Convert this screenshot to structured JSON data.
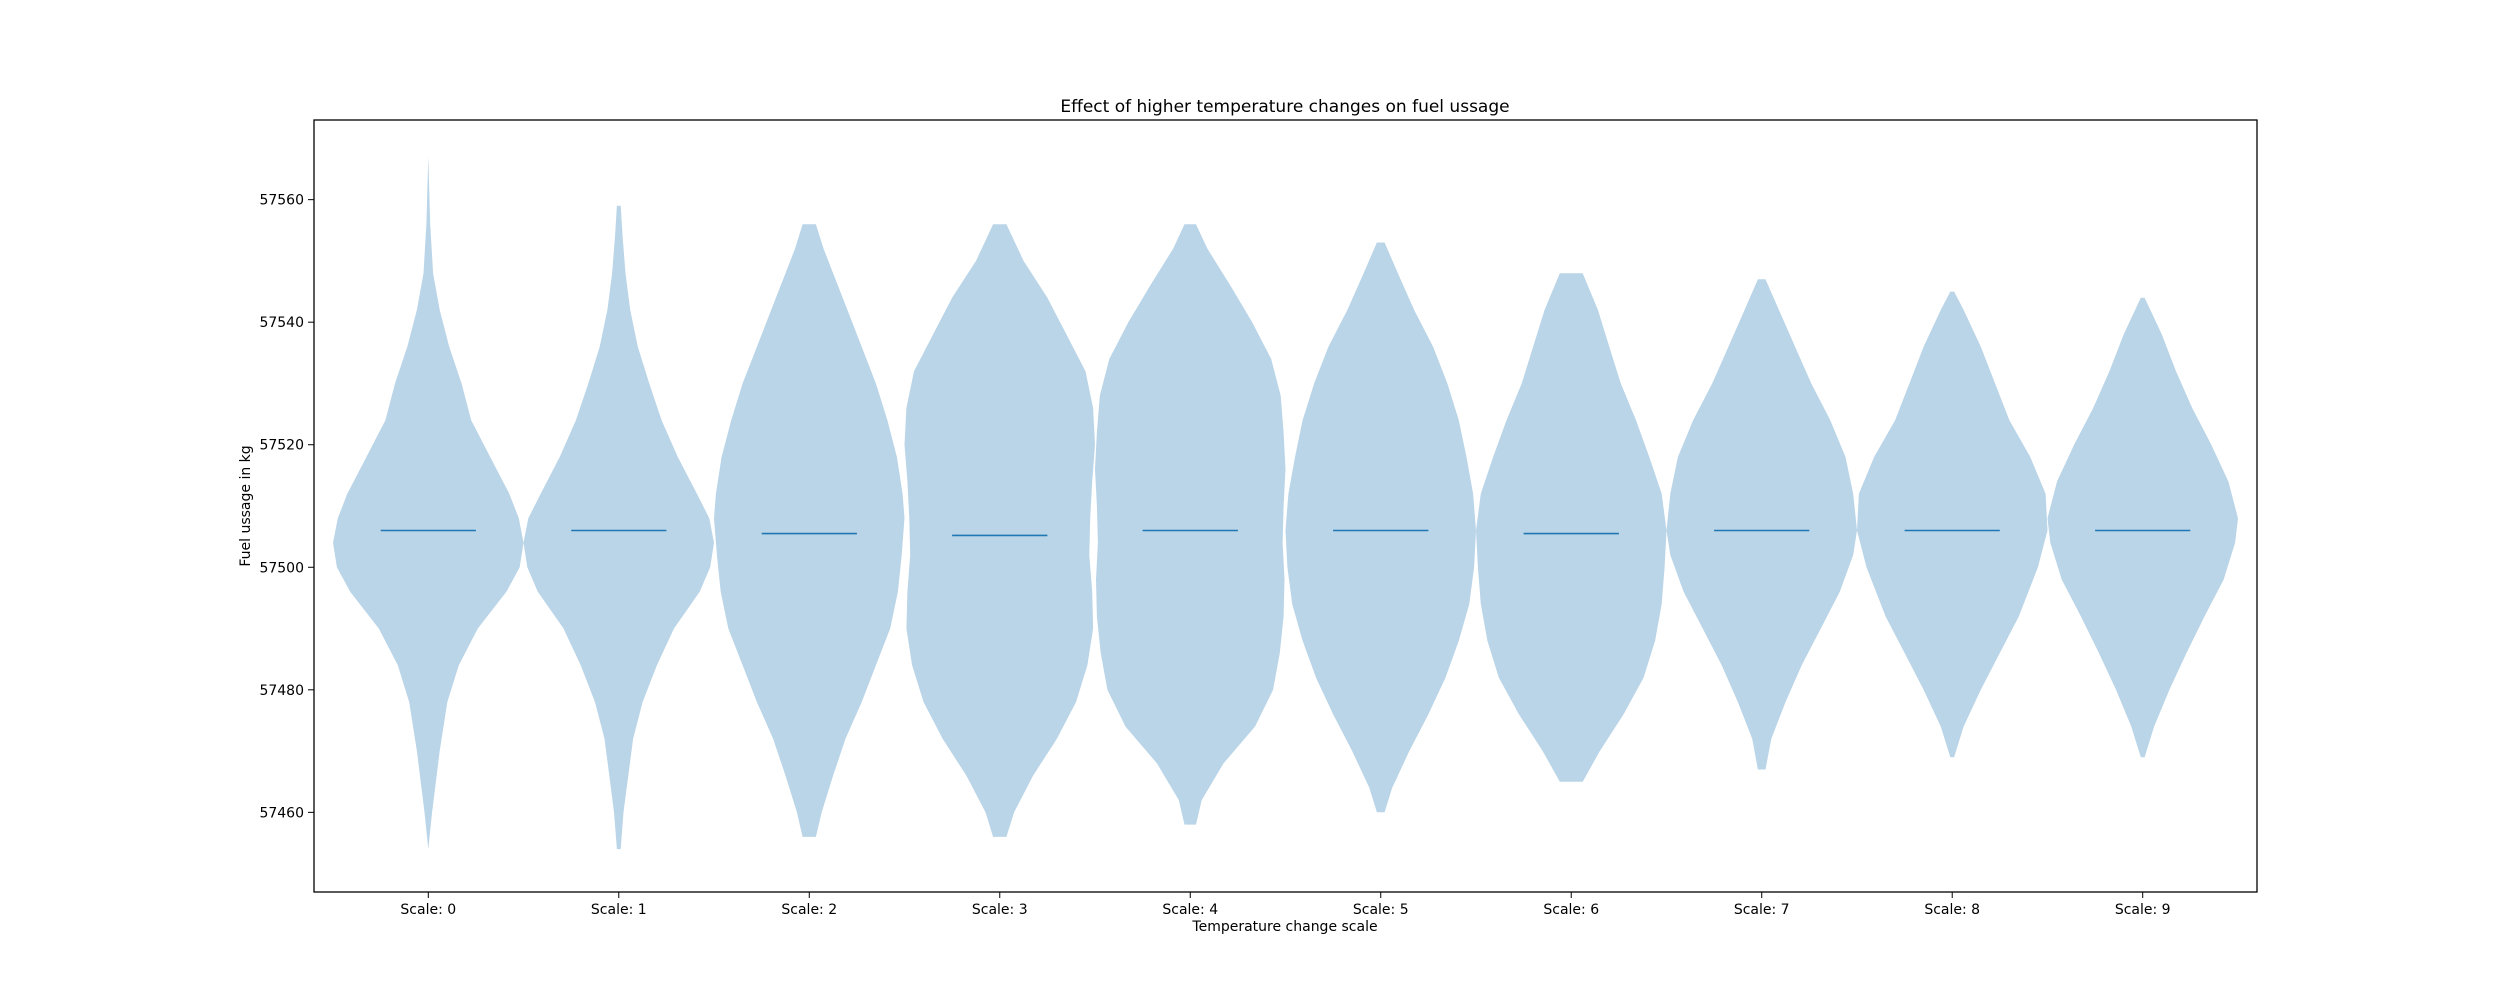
{
  "chart_data": {
    "type": "violin",
    "title": "Effect of higher temperature changes on fuel ussage",
    "xlabel": "Temperature change scale",
    "ylabel": "Fuel ussage in kg",
    "ylim": [
      57447,
      57573
    ],
    "yticks": [
      57460,
      57480,
      57500,
      57520,
      57540,
      57560
    ],
    "grid": false,
    "colors": {
      "fill": "#bad5e8",
      "median": "#1f77b4",
      "frame": "#000000"
    },
    "series": [
      {
        "category": "Scale: 0",
        "min": 57454,
        "max": 57567,
        "median": 57506.0,
        "half_width": 0.5,
        "profile": [
          [
            57454,
            0.0
          ],
          [
            57460,
            0.04
          ],
          [
            57470,
            0.12
          ],
          [
            57478,
            0.2
          ],
          [
            57484,
            0.32
          ],
          [
            57490,
            0.52
          ],
          [
            57496,
            0.82
          ],
          [
            57500,
            0.96
          ],
          [
            57504,
            1.0
          ],
          [
            57508,
            0.95
          ],
          [
            57512,
            0.85
          ],
          [
            57518,
            0.65
          ],
          [
            57524,
            0.45
          ],
          [
            57530,
            0.35
          ],
          [
            57536,
            0.22
          ],
          [
            57542,
            0.12
          ],
          [
            57548,
            0.05
          ],
          [
            57556,
            0.02
          ],
          [
            57567,
            0.0
          ]
        ]
      },
      {
        "category": "Scale: 1",
        "min": 57454,
        "max": 57559,
        "median": 57506.0,
        "half_width": 0.5,
        "profile": [
          [
            57454,
            0.02
          ],
          [
            57460,
            0.05
          ],
          [
            57466,
            0.1
          ],
          [
            57472,
            0.15
          ],
          [
            57478,
            0.25
          ],
          [
            57484,
            0.4
          ],
          [
            57490,
            0.58
          ],
          [
            57496,
            0.85
          ],
          [
            57500,
            0.96
          ],
          [
            57504,
            1.0
          ],
          [
            57508,
            0.95
          ],
          [
            57512,
            0.82
          ],
          [
            57518,
            0.62
          ],
          [
            57524,
            0.45
          ],
          [
            57530,
            0.32
          ],
          [
            57536,
            0.2
          ],
          [
            57542,
            0.12
          ],
          [
            57548,
            0.07
          ],
          [
            57554,
            0.04
          ],
          [
            57559,
            0.02
          ]
        ]
      },
      {
        "category": "Scale: 2",
        "min": 57456,
        "max": 57556,
        "median": 57505.5,
        "half_width": 0.5,
        "profile": [
          [
            57456,
            0.07
          ],
          [
            57460,
            0.13
          ],
          [
            57466,
            0.25
          ],
          [
            57472,
            0.38
          ],
          [
            57478,
            0.55
          ],
          [
            57484,
            0.7
          ],
          [
            57490,
            0.85
          ],
          [
            57496,
            0.93
          ],
          [
            57502,
            0.97
          ],
          [
            57508,
            1.0
          ],
          [
            57512,
            0.98
          ],
          [
            57518,
            0.92
          ],
          [
            57524,
            0.82
          ],
          [
            57530,
            0.7
          ],
          [
            57536,
            0.55
          ],
          [
            57542,
            0.4
          ],
          [
            57548,
            0.25
          ],
          [
            57552,
            0.15
          ],
          [
            57556,
            0.07
          ]
        ]
      },
      {
        "category": "Scale: 3",
        "min": 57456,
        "max": 57556,
        "median": 57505.2,
        "half_width": 0.5,
        "profile": [
          [
            57456,
            0.07
          ],
          [
            57460,
            0.15
          ],
          [
            57466,
            0.35
          ],
          [
            57472,
            0.6
          ],
          [
            57478,
            0.8
          ],
          [
            57484,
            0.92
          ],
          [
            57490,
            0.98
          ],
          [
            57496,
            0.97
          ],
          [
            57502,
            0.94
          ],
          [
            57508,
            0.95
          ],
          [
            57514,
            0.97
          ],
          [
            57520,
            1.0
          ],
          [
            57526,
            0.98
          ],
          [
            57532,
            0.9
          ],
          [
            57538,
            0.7
          ],
          [
            57544,
            0.5
          ],
          [
            57550,
            0.25
          ],
          [
            57556,
            0.07
          ]
        ]
      },
      {
        "category": "Scale: 4",
        "min": 57458,
        "max": 57556,
        "median": 57506.0,
        "half_width": 0.5,
        "profile": [
          [
            57458,
            0.06
          ],
          [
            57462,
            0.12
          ],
          [
            57468,
            0.35
          ],
          [
            57474,
            0.68
          ],
          [
            57480,
            0.87
          ],
          [
            57486,
            0.94
          ],
          [
            57492,
            0.98
          ],
          [
            57498,
            0.99
          ],
          [
            57504,
            0.97
          ],
          [
            57510,
            0.98
          ],
          [
            57516,
            1.0
          ],
          [
            57522,
            0.98
          ],
          [
            57528,
            0.95
          ],
          [
            57534,
            0.85
          ],
          [
            57540,
            0.65
          ],
          [
            57546,
            0.42
          ],
          [
            57552,
            0.18
          ],
          [
            57556,
            0.06
          ]
        ]
      },
      {
        "category": "Scale: 5",
        "min": 57460,
        "max": 57553,
        "median": 57506.0,
        "half_width": 0.5,
        "profile": [
          [
            57460,
            0.04
          ],
          [
            57464,
            0.12
          ],
          [
            57470,
            0.3
          ],
          [
            57476,
            0.5
          ],
          [
            57482,
            0.68
          ],
          [
            57488,
            0.82
          ],
          [
            57494,
            0.93
          ],
          [
            57500,
            0.98
          ],
          [
            57506,
            1.0
          ],
          [
            57512,
            0.97
          ],
          [
            57518,
            0.9
          ],
          [
            57524,
            0.82
          ],
          [
            57530,
            0.7
          ],
          [
            57536,
            0.55
          ],
          [
            57542,
            0.35
          ],
          [
            57548,
            0.18
          ],
          [
            57553,
            0.04
          ]
        ]
      },
      {
        "category": "Scale: 6",
        "min": 57465,
        "max": 57548,
        "median": 57505.5,
        "half_width": 0.5,
        "profile": [
          [
            57465,
            0.12
          ],
          [
            57470,
            0.3
          ],
          [
            57476,
            0.55
          ],
          [
            57482,
            0.76
          ],
          [
            57488,
            0.88
          ],
          [
            57494,
            0.95
          ],
          [
            57500,
            0.98
          ],
          [
            57506,
            1.0
          ],
          [
            57512,
            0.95
          ],
          [
            57518,
            0.82
          ],
          [
            57524,
            0.68
          ],
          [
            57530,
            0.52
          ],
          [
            57536,
            0.4
          ],
          [
            57542,
            0.28
          ],
          [
            57548,
            0.12
          ]
        ]
      },
      {
        "category": "Scale: 7",
        "min": 57467,
        "max": 57547,
        "median": 57506.0,
        "half_width": 0.5,
        "profile": [
          [
            57467,
            0.04
          ],
          [
            57472,
            0.1
          ],
          [
            57478,
            0.25
          ],
          [
            57484,
            0.42
          ],
          [
            57490,
            0.62
          ],
          [
            57496,
            0.82
          ],
          [
            57502,
            0.96
          ],
          [
            57506,
            1.0
          ],
          [
            57512,
            0.96
          ],
          [
            57518,
            0.88
          ],
          [
            57524,
            0.72
          ],
          [
            57530,
            0.52
          ],
          [
            57536,
            0.35
          ],
          [
            57542,
            0.18
          ],
          [
            57547,
            0.04
          ]
        ]
      },
      {
        "category": "Scale: 8",
        "min": 57469,
        "max": 57545,
        "median": 57506.0,
        "half_width": 0.5,
        "profile": [
          [
            57469,
            0.02
          ],
          [
            57474,
            0.12
          ],
          [
            57480,
            0.3
          ],
          [
            57486,
            0.5
          ],
          [
            57492,
            0.7
          ],
          [
            57496,
            0.8
          ],
          [
            57500,
            0.9
          ],
          [
            57506,
            1.0
          ],
          [
            57512,
            0.98
          ],
          [
            57518,
            0.82
          ],
          [
            57524,
            0.6
          ],
          [
            57530,
            0.45
          ],
          [
            57536,
            0.3
          ],
          [
            57542,
            0.12
          ],
          [
            57545,
            0.02
          ]
        ]
      },
      {
        "category": "Scale: 9",
        "min": 57469,
        "max": 57544,
        "median": 57506.0,
        "half_width": 0.5,
        "profile": [
          [
            57469,
            0.02
          ],
          [
            57474,
            0.12
          ],
          [
            57480,
            0.28
          ],
          [
            57486,
            0.46
          ],
          [
            57492,
            0.65
          ],
          [
            57498,
            0.85
          ],
          [
            57504,
            0.97
          ],
          [
            57508,
            1.0
          ],
          [
            57514,
            0.9
          ],
          [
            57520,
            0.72
          ],
          [
            57526,
            0.52
          ],
          [
            57532,
            0.35
          ],
          [
            57538,
            0.2
          ],
          [
            57544,
            0.02
          ]
        ]
      }
    ]
  }
}
